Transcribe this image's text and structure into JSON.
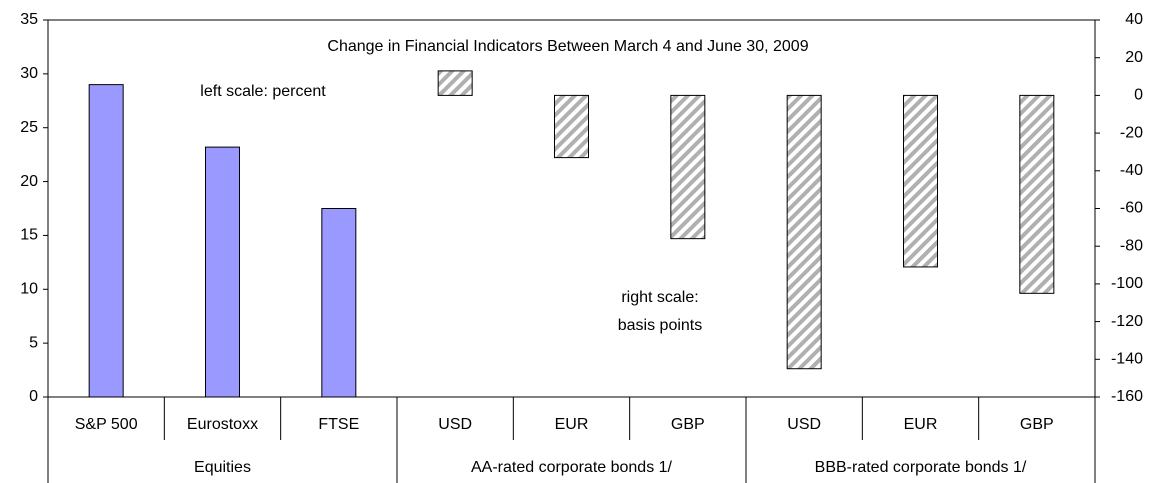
{
  "chart_data": {
    "type": "bar",
    "title": "Change in Financial Indicators Between March 4 and June 30, 2009",
    "annotations": [
      "left scale: percent",
      "right scale:",
      "basis points"
    ],
    "categories": [
      "S&P 500",
      "Eurostoxx",
      "FTSE",
      "USD",
      "EUR",
      "GBP",
      "USD",
      "EUR",
      "GBP"
    ],
    "groups": [
      {
        "label": "Equities",
        "span": 3
      },
      {
        "label": "AA-rated corporate bonds 1/",
        "span": 3
      },
      {
        "label": "BBB-rated corporate bonds 1/",
        "span": 3
      }
    ],
    "series": [
      {
        "color": "#9999ff",
        "values": [
          29,
          23.2,
          17.5,
          null,
          null,
          null,
          null,
          null,
          null
        ]
      },
      {
        "color": "hatch",
        "axis": "y2",
        "values": [
          null,
          null,
          null,
          13,
          -33,
          -76,
          -145,
          -91,
          -105
        ]
      }
    ],
    "ylim": [
      0,
      35
    ],
    "yticks": [
      0,
      5,
      10,
      15,
      20,
      25,
      30,
      35
    ],
    "y2lim": [
      -160,
      40
    ],
    "y2ticks": [
      -160,
      -140,
      -120,
      -100,
      -80,
      -60,
      -40,
      -20,
      0,
      20,
      40
    ]
  }
}
